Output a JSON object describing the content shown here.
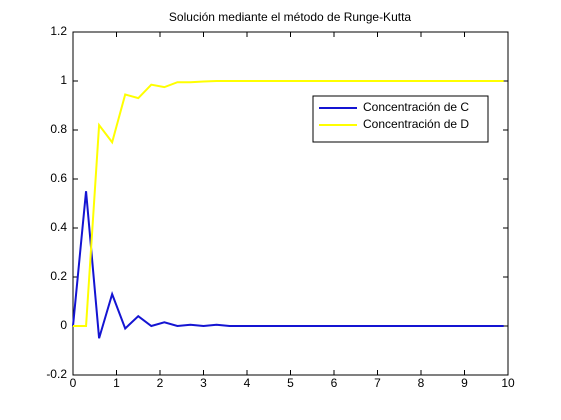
{
  "chart_data": {
    "type": "line",
    "title": "Solución mediante el método de Runge-Kutta",
    "x": [
      0,
      0.3,
      0.6,
      0.9,
      1.2,
      1.5,
      1.8,
      2.1,
      2.4,
      2.7,
      3,
      3.3,
      3.6,
      3.9,
      4.2,
      4.5,
      4.8,
      5.1,
      5.4,
      5.7,
      6,
      6.3,
      6.6,
      6.9,
      7.2,
      7.5,
      7.8,
      8.1,
      8.4,
      8.7,
      9,
      9.3,
      9.6,
      9.9
    ],
    "series": [
      {
        "name": "Concentración de C",
        "color": "#1414d2",
        "values": [
          0,
          0.55,
          -0.05,
          0.13,
          -0.01,
          0.04,
          0,
          0.015,
          0,
          0.005,
          0,
          0.005,
          0,
          0,
          0,
          0,
          0,
          0,
          0,
          0,
          0,
          0,
          0,
          0,
          0,
          0,
          0,
          0,
          0,
          0,
          0,
          0,
          0,
          0
        ]
      },
      {
        "name": "Concentración de D",
        "color": "#ffff00",
        "values": [
          0,
          0,
          0.82,
          0.75,
          0.945,
          0.93,
          0.985,
          0.975,
          0.995,
          0.995,
          0.998,
          1,
          1,
          1,
          1,
          1,
          1,
          1,
          1,
          1,
          1,
          1,
          1,
          1,
          1,
          1,
          1,
          1,
          1,
          1,
          1,
          1,
          1,
          1
        ]
      }
    ],
    "xlim": [
      0,
      10
    ],
    "xticks": [
      0,
      1,
      2,
      3,
      4,
      5,
      6,
      7,
      8,
      9,
      10
    ],
    "ylim": [
      -0.2,
      1.2
    ],
    "yticks": [
      -0.2,
      0,
      0.2,
      0.4,
      0.6,
      0.8,
      1,
      1.2
    ],
    "grid": false,
    "legend": "upper right"
  }
}
